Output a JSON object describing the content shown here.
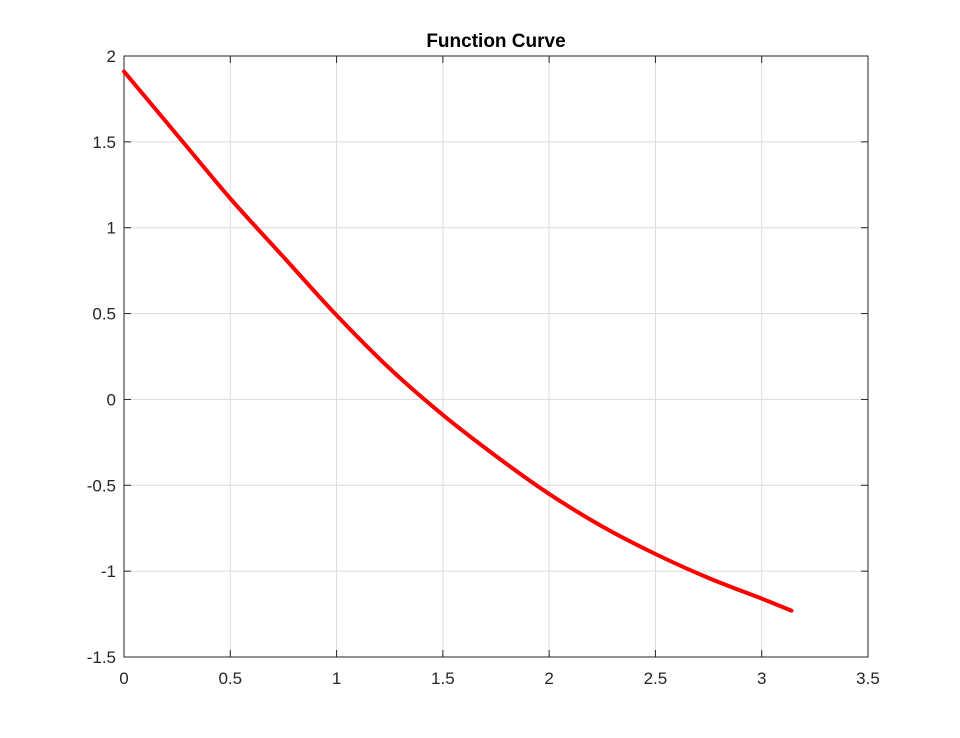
{
  "chart_data": {
    "type": "line",
    "title": "Function Curve",
    "xlabel": "",
    "ylabel": "",
    "xlim": [
      0,
      3.5
    ],
    "ylim": [
      -1.5,
      2
    ],
    "xticks": [
      "0",
      "0.5",
      "1",
      "1.5",
      "2",
      "2.5",
      "3",
      "3.5"
    ],
    "yticks": [
      "-1.5",
      "-1",
      "-0.5",
      "0",
      "0.5",
      "1",
      "1.5",
      "2"
    ],
    "grid": true,
    "series": [
      {
        "color": "#ff0000",
        "x": [
          0,
          0.25,
          0.5,
          0.75,
          1.0,
          1.25,
          1.5,
          1.75,
          2.0,
          2.25,
          2.5,
          2.75,
          3.0,
          3.14
        ],
        "y": [
          1.91,
          1.54,
          1.17,
          0.83,
          0.49,
          0.18,
          -0.09,
          -0.33,
          -0.55,
          -0.74,
          -0.9,
          -1.04,
          -1.16,
          -1.23
        ]
      }
    ]
  }
}
